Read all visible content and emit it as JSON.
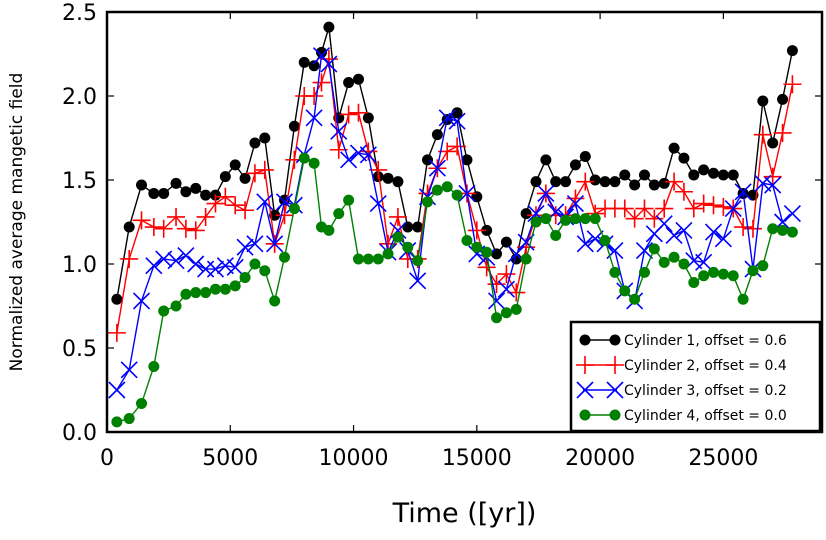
{
  "chart_data": {
    "type": "line",
    "title": "",
    "xlabel": "Time ([yr])",
    "ylabel": "Normalized average mangetic field",
    "xlim": [
      0,
      29000
    ],
    "ylim": [
      0.0,
      2.5
    ],
    "xticks": [
      0,
      5000,
      10000,
      15000,
      20000,
      25000
    ],
    "xtick_labels": [
      "0",
      "5000",
      "10000",
      "15000",
      "20000",
      "25000"
    ],
    "yticks": [
      0.0,
      0.5,
      1.0,
      1.5,
      2.0,
      2.5
    ],
    "ytick_labels": [
      "0.0",
      "0.5",
      "1.0",
      "1.5",
      "2.0",
      "2.5"
    ],
    "grid": false,
    "legend_position": "lower-right",
    "x": [
      400,
      900,
      1400,
      1900,
      2300,
      2800,
      3200,
      3600,
      4000,
      4400,
      4800,
      5200,
      5600,
      6000,
      6400,
      6800,
      7200,
      7600,
      8000,
      8400,
      8700,
      9000,
      9400,
      9800,
      10200,
      10600,
      11000,
      11400,
      11800,
      12200,
      12600,
      13000,
      13400,
      13800,
      14200,
      14600,
      15000,
      15400,
      15800,
      16200,
      16600,
      17000,
      17400,
      17800,
      18200,
      18600,
      19000,
      19400,
      19800,
      20200,
      20600,
      21000,
      21400,
      21800,
      22200,
      22600,
      23000,
      23400,
      23800,
      24200,
      24600,
      25000,
      25400,
      25800,
      26200,
      26600,
      27000,
      27400,
      27800
    ],
    "series": [
      {
        "name": "Cylinder 1, offset = 0.6",
        "color": "#000000",
        "marker": "circle",
        "values": [
          0.79,
          1.22,
          1.47,
          1.42,
          1.42,
          1.48,
          1.43,
          1.45,
          1.41,
          1.41,
          1.52,
          1.59,
          1.51,
          1.72,
          1.75,
          1.29,
          1.38,
          1.82,
          2.2,
          2.18,
          2.26,
          2.41,
          1.87,
          2.08,
          2.1,
          1.87,
          1.52,
          1.51,
          1.49,
          1.22,
          1.22,
          1.62,
          1.77,
          1.86,
          1.9,
          1.62,
          1.4,
          1.2,
          1.06,
          1.13,
          1.03,
          1.3,
          1.49,
          1.62,
          1.49,
          1.49,
          1.59,
          1.64,
          1.5,
          1.49,
          1.49,
          1.53,
          1.47,
          1.53,
          1.47,
          1.48,
          1.69,
          1.63,
          1.53,
          1.56,
          1.54,
          1.53,
          1.53,
          1.42,
          1.41,
          1.97,
          1.72,
          1.98,
          2.27
        ]
      },
      {
        "name": "Cylinder 2, offset = 0.4",
        "color": "#ff0000",
        "marker": "plus",
        "values": [
          0.59,
          1.03,
          1.26,
          1.22,
          1.21,
          1.28,
          1.21,
          1.2,
          1.28,
          1.36,
          1.4,
          1.35,
          1.32,
          1.54,
          1.56,
          1.12,
          1.29,
          1.62,
          2.0,
          2.0,
          2.08,
          2.22,
          1.68,
          1.89,
          1.9,
          1.67,
          1.56,
          1.12,
          1.28,
          1.03,
          1.03,
          1.42,
          1.57,
          1.67,
          1.7,
          1.42,
          1.2,
          0.98,
          0.88,
          0.94,
          0.83,
          1.1,
          1.29,
          1.42,
          1.29,
          1.29,
          1.39,
          1.49,
          1.3,
          1.33,
          1.33,
          1.33,
          1.27,
          1.33,
          1.27,
          1.33,
          1.49,
          1.43,
          1.33,
          1.36,
          1.35,
          1.34,
          1.33,
          1.22,
          1.21,
          1.77,
          1.52,
          1.78,
          2.07
        ]
      },
      {
        "name": "Cylinder 3, offset = 0.2",
        "color": "#0000ff",
        "marker": "x",
        "values": [
          0.25,
          0.37,
          0.78,
          0.99,
          1.03,
          1.02,
          1.05,
          1.0,
          0.97,
          0.97,
          0.99,
          0.98,
          1.1,
          1.12,
          1.37,
          1.12,
          1.37,
          1.35,
          1.65,
          1.87,
          2.24,
          2.19,
          1.79,
          1.62,
          1.66,
          1.65,
          1.36,
          1.07,
          1.2,
          1.08,
          0.9,
          1.4,
          1.57,
          1.87,
          1.85,
          1.42,
          1.06,
          1.04,
          0.78,
          0.85,
          1.06,
          1.13,
          1.3,
          1.42,
          1.31,
          1.28,
          1.36,
          1.12,
          1.15,
          1.12,
          1.08,
          0.84,
          0.78,
          1.08,
          1.18,
          1.24,
          1.17,
          1.2,
          1.02,
          1.01,
          1.19,
          1.15,
          1.33,
          1.43,
          0.97,
          1.48,
          1.47,
          1.25,
          1.3
        ]
      },
      {
        "name": "Cylinder 4, offset = 0.0",
        "color": "#008000",
        "marker": "circle",
        "values": [
          0.06,
          0.08,
          0.17,
          0.39,
          0.72,
          0.75,
          0.82,
          0.83,
          0.83,
          0.85,
          0.85,
          0.87,
          0.92,
          1.0,
          0.96,
          0.78,
          1.04,
          1.33,
          1.63,
          1.6,
          1.22,
          1.2,
          1.3,
          1.38,
          1.03,
          1.03,
          1.03,
          1.06,
          1.16,
          1.1,
          1.02,
          1.37,
          1.44,
          1.46,
          1.41,
          1.14,
          1.1,
          1.07,
          0.68,
          0.71,
          0.73,
          1.03,
          1.25,
          1.27,
          1.17,
          1.26,
          1.27,
          1.27,
          1.27,
          1.14,
          0.95,
          0.84,
          0.79,
          0.95,
          1.09,
          1.01,
          1.04,
          1.0,
          0.89,
          0.93,
          0.95,
          0.94,
          0.93,
          0.79,
          0.96,
          0.99,
          1.21,
          1.2,
          1.19
        ]
      }
    ]
  }
}
